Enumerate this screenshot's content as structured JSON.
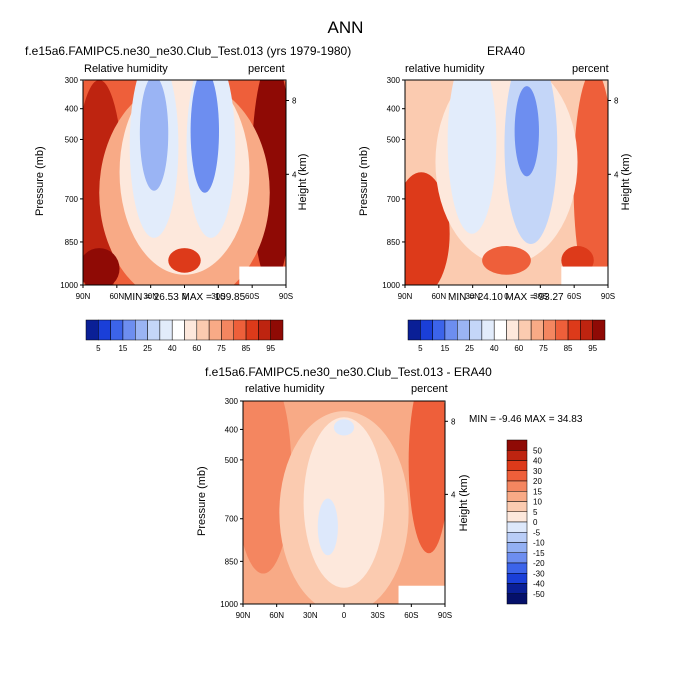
{
  "page_title": "ANN",
  "panels": [
    {
      "title": "f.e15a6.FAMIPC5.ne30_ne30.Club_Test.013 (yrs 1979-1980)",
      "left_label": "Relative humidity",
      "right_label": "percent",
      "minmax": "MIN = 26.53  MAX = 109.85",
      "palette": "humidity"
    },
    {
      "title": "ERA40",
      "left_label": "relative humidity",
      "right_label": "percent",
      "minmax": "MIN = 24.10  MAX = 93.27",
      "palette": "humidity"
    },
    {
      "title": "f.e15a6.FAMIPC5.ne30_ne30.Club_Test.013 - ERA40",
      "left_label": "relative humidity",
      "right_label": "percent",
      "minmax": "MIN = -9.46  MAX = 34.83",
      "palette": "difference"
    }
  ],
  "axes": {
    "ylabel": "Pressure (mb)",
    "y2label": "Height (km)",
    "pressure_ticks": [
      "300",
      "400",
      "500",
      "700",
      "850",
      "1000"
    ],
    "height_ticks": [
      "8",
      "4"
    ],
    "lat_ticks": [
      "90N",
      "60N",
      "30N",
      "0",
      "30S",
      "60S",
      "90S"
    ]
  },
  "colorbars": {
    "humidity": {
      "labels": [
        "5",
        "15",
        "25",
        "40",
        "60",
        "75",
        "85",
        "95"
      ],
      "colors": [
        "#0a1f96",
        "#1a3fd8",
        "#3c64ea",
        "#6d8ef0",
        "#9ab4f4",
        "#c4d6f8",
        "#e2ecfb",
        "#ffffff",
        "#fde8dc",
        "#fbcbb0",
        "#f8aa86",
        "#f48660",
        "#ee5f3a",
        "#dd3a1a",
        "#be2410",
        "#8f0a05"
      ]
    },
    "difference": {
      "labels": [
        "50",
        "40",
        "30",
        "20",
        "15",
        "10",
        "5",
        "0",
        "-5",
        "-10",
        "-15",
        "-20",
        "-30",
        "-40",
        "-50"
      ],
      "colors": [
        "#8f0a05",
        "#be2410",
        "#dd3a1a",
        "#ee5f3a",
        "#f48660",
        "#f8aa86",
        "#fbcbb0",
        "#fde8dc",
        "#dde8fb",
        "#b9cdf7",
        "#93b0f3",
        "#6d8ef0",
        "#3c64ea",
        "#1a3fd8",
        "#0a1f96",
        "#05106a"
      ]
    }
  },
  "chart_data": [
    {
      "type": "heatmap",
      "title": "f.e15a6.FAMIPC5.ne30_ne30.Club_Test.013 (yrs 1979-1980)",
      "variable": "Relative humidity",
      "units": "percent",
      "xlabel": "",
      "ylabel": "Pressure (mb)",
      "y2label": "Height (km)",
      "x_ticks": [
        "90N",
        "60N",
        "30N",
        "0",
        "30S",
        "60S",
        "90S"
      ],
      "y_ticks": [
        300,
        400,
        500,
        700,
        850,
        1000
      ],
      "y2_ticks": [
        8,
        4
      ],
      "min": 26.53,
      "max": 109.85,
      "contour_levels": [
        5,
        15,
        25,
        40,
        60,
        75,
        85,
        95
      ]
    },
    {
      "type": "heatmap",
      "title": "ERA40",
      "variable": "relative humidity",
      "units": "percent",
      "xlabel": "",
      "ylabel": "Pressure (mb)",
      "y2label": "Height (km)",
      "x_ticks": [
        "90N",
        "60N",
        "30N",
        "0",
        "30S",
        "60S",
        "90S"
      ],
      "y_ticks": [
        300,
        400,
        500,
        700,
        850,
        1000
      ],
      "y2_ticks": [
        8,
        4
      ],
      "min": 24.1,
      "max": 93.27,
      "contour_levels": [
        5,
        15,
        25,
        40,
        60,
        75,
        85,
        95
      ]
    },
    {
      "type": "heatmap",
      "title": "f.e15a6.FAMIPC5.ne30_ne30.Club_Test.013 - ERA40",
      "variable": "relative humidity",
      "units": "percent",
      "xlabel": "",
      "ylabel": "Pressure (mb)",
      "y2label": "Height (km)",
      "x_ticks": [
        "90N",
        "60N",
        "30N",
        "0",
        "30S",
        "60S",
        "90S"
      ],
      "y_ticks": [
        300,
        400,
        500,
        700,
        850,
        1000
      ],
      "y2_ticks": [
        8,
        4
      ],
      "min": -9.46,
      "max": 34.83,
      "contour_levels": [
        -50,
        -40,
        -30,
        -20,
        -15,
        -10,
        -5,
        0,
        5,
        10,
        15,
        20,
        30,
        40,
        50
      ]
    }
  ]
}
